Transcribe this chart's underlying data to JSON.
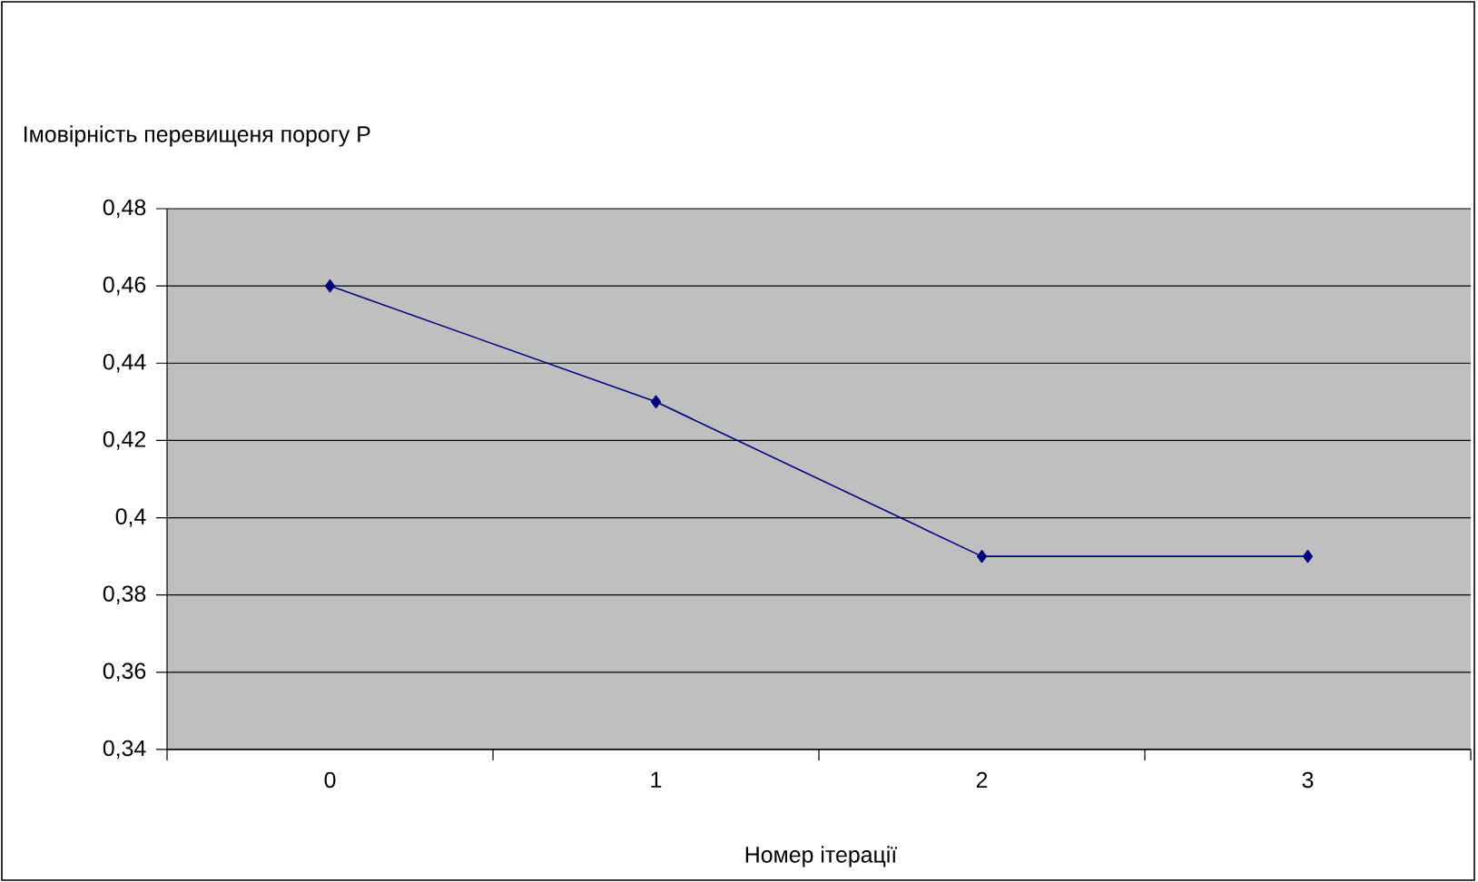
{
  "chart_data": {
    "type": "line",
    "ylabel": "Імовірність перевищеня порогу P",
    "xlabel": "Номер ітерації",
    "categories": [
      "0",
      "1",
      "2",
      "3"
    ],
    "series": [
      {
        "color": "#000080",
        "values": [
          0.46,
          0.43,
          0.39,
          0.39
        ]
      }
    ],
    "ylim": [
      0.34,
      0.48
    ],
    "yticks": [
      {
        "value": 0.34,
        "label": "0,34"
      },
      {
        "value": 0.36,
        "label": "0,36"
      },
      {
        "value": 0.38,
        "label": "0,38"
      },
      {
        "value": 0.4,
        "label": "0,4"
      },
      {
        "value": 0.42,
        "label": "0,42"
      },
      {
        "value": 0.44,
        "label": "0,44"
      },
      {
        "value": 0.46,
        "label": "0,46"
      },
      {
        "value": 0.48,
        "label": "0,48"
      }
    ],
    "grid": "y",
    "marker": "diamond",
    "line_style": "solid"
  }
}
